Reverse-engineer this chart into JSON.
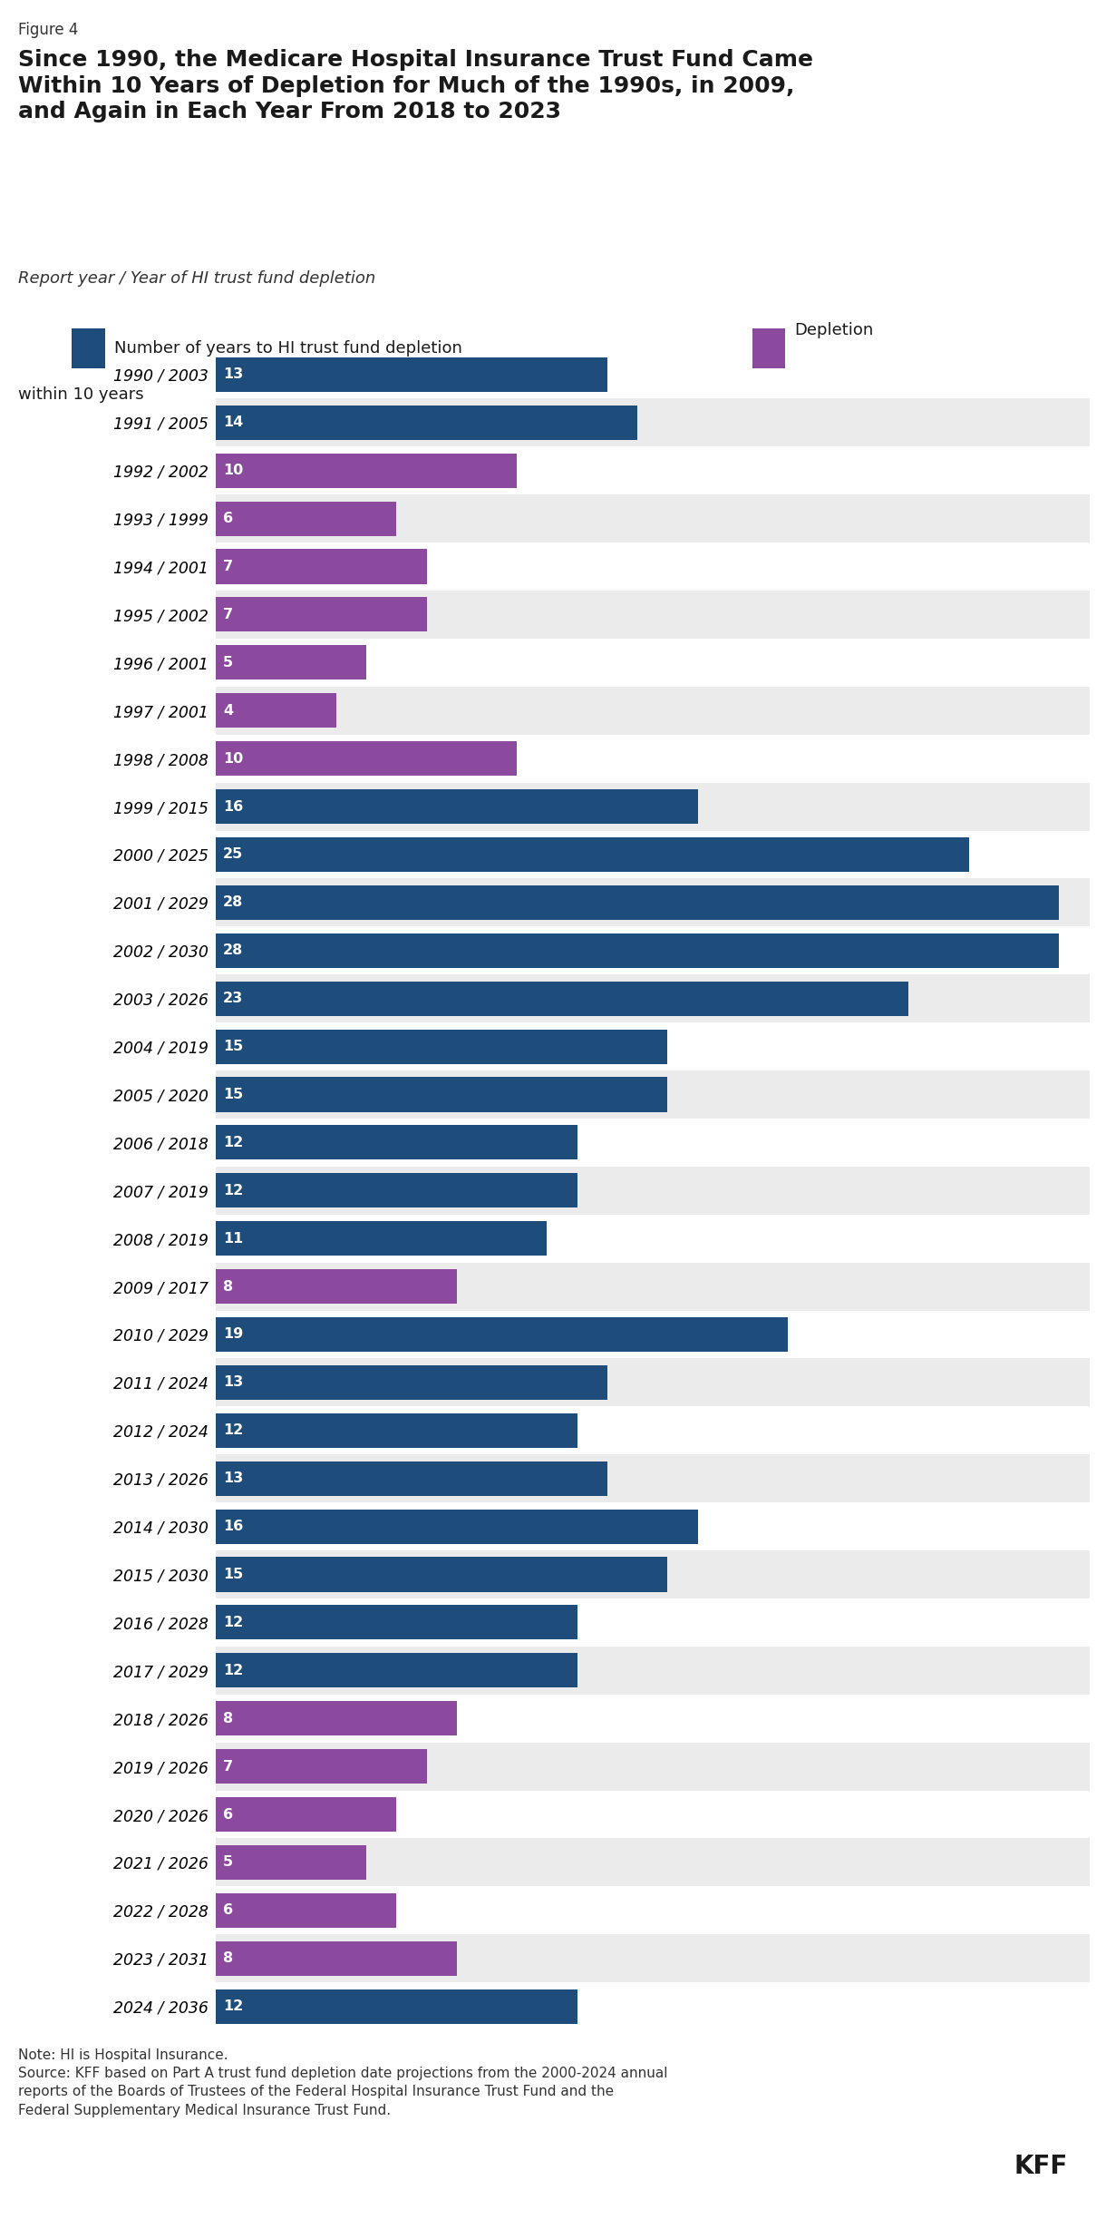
{
  "figure_label": "Figure 4",
  "title_line1": "Since 1990, the Medicare Hospital Insurance Trust Fund Came",
  "title_line2": "Within 10 Years of Depletion for Much of the 1990s, in 2009,",
  "title_line3": "and Again in Each Year From 2018 to 2023",
  "subtitle": "Report year / Year of HI trust fund depletion",
  "legend_blue_text": "Number of years to HI trust fund depletion",
  "legend_purple_line1": "Depletion",
  "legend_purple_line2": "within 10 years",
  "note_line1": "Note: HI is Hospital Insurance.",
  "note_line2": "Source: KFF based on Part A trust fund depletion date projections from the 2000-2024 annual",
  "note_line3": "reports of the Boards of Trustees of the Federal Hospital Insurance Trust Fund and the",
  "note_line4": "Federal Supplementary Medical Insurance Trust Fund.",
  "kff_label": "KFF",
  "rows": [
    {
      "label": "1990 / 2003",
      "value": 13,
      "color": "#1e4d7b"
    },
    {
      "label": "1991 / 2005",
      "value": 14,
      "color": "#1e4d7b"
    },
    {
      "label": "1992 / 2002",
      "value": 10,
      "color": "#8c4a9e"
    },
    {
      "label": "1993 / 1999",
      "value": 6,
      "color": "#8c4a9e"
    },
    {
      "label": "1994 / 2001",
      "value": 7,
      "color": "#8c4a9e"
    },
    {
      "label": "1995 / 2002",
      "value": 7,
      "color": "#8c4a9e"
    },
    {
      "label": "1996 / 2001",
      "value": 5,
      "color": "#8c4a9e"
    },
    {
      "label": "1997 / 2001",
      "value": 4,
      "color": "#8c4a9e"
    },
    {
      "label": "1998 / 2008",
      "value": 10,
      "color": "#8c4a9e"
    },
    {
      "label": "1999 / 2015",
      "value": 16,
      "color": "#1e4d7b"
    },
    {
      "label": "2000 / 2025",
      "value": 25,
      "color": "#1e4d7b"
    },
    {
      "label": "2001 / 2029",
      "value": 28,
      "color": "#1e4d7b"
    },
    {
      "label": "2002 / 2030",
      "value": 28,
      "color": "#1e4d7b"
    },
    {
      "label": "2003 / 2026",
      "value": 23,
      "color": "#1e4d7b"
    },
    {
      "label": "2004 / 2019",
      "value": 15,
      "color": "#1e4d7b"
    },
    {
      "label": "2005 / 2020",
      "value": 15,
      "color": "#1e4d7b"
    },
    {
      "label": "2006 / 2018",
      "value": 12,
      "color": "#1e4d7b"
    },
    {
      "label": "2007 / 2019",
      "value": 12,
      "color": "#1e4d7b"
    },
    {
      "label": "2008 / 2019",
      "value": 11,
      "color": "#1e4d7b"
    },
    {
      "label": "2009 / 2017",
      "value": 8,
      "color": "#8c4a9e"
    },
    {
      "label": "2010 / 2029",
      "value": 19,
      "color": "#1e4d7b"
    },
    {
      "label": "2011 / 2024",
      "value": 13,
      "color": "#1e4d7b"
    },
    {
      "label": "2012 / 2024",
      "value": 12,
      "color": "#1e4d7b"
    },
    {
      "label": "2013 / 2026",
      "value": 13,
      "color": "#1e4d7b"
    },
    {
      "label": "2014 / 2030",
      "value": 16,
      "color": "#1e4d7b"
    },
    {
      "label": "2015 / 2030",
      "value": 15,
      "color": "#1e4d7b"
    },
    {
      "label": "2016 / 2028",
      "value": 12,
      "color": "#1e4d7b"
    },
    {
      "label": "2017 / 2029",
      "value": 12,
      "color": "#1e4d7b"
    },
    {
      "label": "2018 / 2026",
      "value": 8,
      "color": "#8c4a9e"
    },
    {
      "label": "2019 / 2026",
      "value": 7,
      "color": "#8c4a9e"
    },
    {
      "label": "2020 / 2026",
      "value": 6,
      "color": "#8c4a9e"
    },
    {
      "label": "2021 / 2026",
      "value": 5,
      "color": "#8c4a9e"
    },
    {
      "label": "2022 / 2028",
      "value": 6,
      "color": "#8c4a9e"
    },
    {
      "label": "2023 / 2031",
      "value": 8,
      "color": "#8c4a9e"
    },
    {
      "label": "2024 / 2036",
      "value": 12,
      "color": "#1e4d7b"
    }
  ],
  "blue_color": "#1e4d7b",
  "purple_color": "#8c4a9e",
  "stripe_color": "#ebebeb",
  "white_color": "#ffffff",
  "xlim_max": 29,
  "bar_height": 0.72,
  "label_fontsize": 12.5,
  "value_fontsize": 11.5,
  "title_fontsize": 18,
  "subtitle_fontsize": 13,
  "legend_fontsize": 13,
  "note_fontsize": 11,
  "figure_label_fontsize": 12
}
